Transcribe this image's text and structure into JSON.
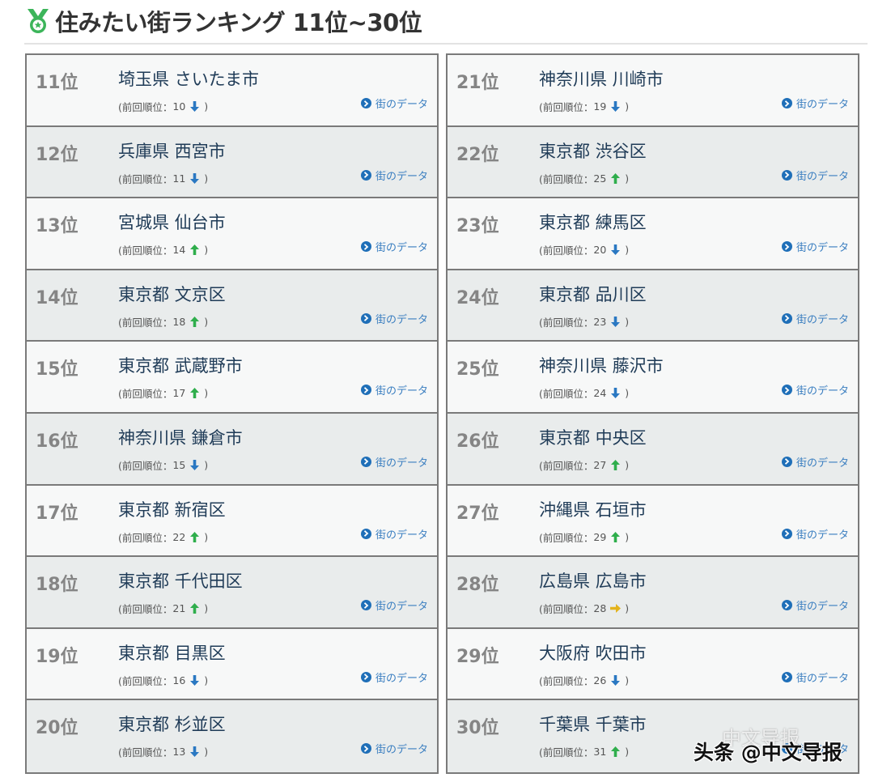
{
  "header": {
    "title": "住みたい街ランキング 11位~30位",
    "icon": "medal-icon",
    "accent_color": "#3cb55a"
  },
  "colors": {
    "up": "#2fae4c",
    "down": "#2a78c2",
    "same": "#e3b31c",
    "link": "#3a7ec0"
  },
  "link_label": "街のデータ",
  "left_column": [
    {
      "rank": "11位",
      "name": "埼玉県 さいたま市",
      "prev_label": "(前回順位：",
      "prev": "10",
      "trend": "down",
      "close": ")",
      "link": "街のデータ"
    },
    {
      "rank": "12位",
      "name": "兵庫県 西宮市",
      "prev_label": "(前回順位：",
      "prev": "11",
      "trend": "down",
      "close": ")",
      "link": "街のデータ"
    },
    {
      "rank": "13位",
      "name": "宮城県 仙台市",
      "prev_label": "(前回順位：",
      "prev": "14",
      "trend": "up",
      "close": ")",
      "link": "街のデータ"
    },
    {
      "rank": "14位",
      "name": "東京都 文京区",
      "prev_label": "(前回順位：",
      "prev": "18",
      "trend": "up",
      "close": ")",
      "link": "街のデータ"
    },
    {
      "rank": "15位",
      "name": "東京都 武蔵野市",
      "prev_label": "(前回順位：",
      "prev": "17",
      "trend": "up",
      "close": ")",
      "link": "街のデータ"
    },
    {
      "rank": "16位",
      "name": "神奈川県 鎌倉市",
      "prev_label": "(前回順位：",
      "prev": "15",
      "trend": "down",
      "close": ")",
      "link": "街のデータ"
    },
    {
      "rank": "17位",
      "name": "東京都 新宿区",
      "prev_label": "(前回順位：",
      "prev": "22",
      "trend": "up",
      "close": ")",
      "link": "街のデータ"
    },
    {
      "rank": "18位",
      "name": "東京都 千代田区",
      "prev_label": "(前回順位：",
      "prev": "21",
      "trend": "up",
      "close": ")",
      "link": "街のデータ"
    },
    {
      "rank": "19位",
      "name": "東京都 目黒区",
      "prev_label": "(前回順位：",
      "prev": "16",
      "trend": "down",
      "close": ")",
      "link": "街のデータ"
    },
    {
      "rank": "20位",
      "name": "東京都 杉並区",
      "prev_label": "(前回順位：",
      "prev": "13",
      "trend": "down",
      "close": ")",
      "link": "街のデータ"
    }
  ],
  "right_column": [
    {
      "rank": "21位",
      "name": "神奈川県 川崎市",
      "prev_label": "(前回順位：",
      "prev": "19",
      "trend": "down",
      "close": ")",
      "link": "街のデータ"
    },
    {
      "rank": "22位",
      "name": "東京都 渋谷区",
      "prev_label": "(前回順位：",
      "prev": "25",
      "trend": "up",
      "close": ")",
      "link": "街のデータ"
    },
    {
      "rank": "23位",
      "name": "東京都 練馬区",
      "prev_label": "(前回順位：",
      "prev": "20",
      "trend": "down",
      "close": ")",
      "link": "街のデータ"
    },
    {
      "rank": "24位",
      "name": "東京都 品川区",
      "prev_label": "(前回順位：",
      "prev": "23",
      "trend": "down",
      "close": ")",
      "link": "街のデータ"
    },
    {
      "rank": "25位",
      "name": "神奈川県 藤沢市",
      "prev_label": "(前回順位：",
      "prev": "24",
      "trend": "down",
      "close": ")",
      "link": "街のデータ"
    },
    {
      "rank": "26位",
      "name": "東京都 中央区",
      "prev_label": "(前回順位：",
      "prev": "27",
      "trend": "up",
      "close": ")",
      "link": "街のデータ"
    },
    {
      "rank": "27位",
      "name": "沖縄県 石垣市",
      "prev_label": "(前回順位：",
      "prev": "29",
      "trend": "up",
      "close": ")",
      "link": "街のデータ"
    },
    {
      "rank": "28位",
      "name": "広島県 広島市",
      "prev_label": "(前回順位：",
      "prev": "28",
      "trend": "same",
      "close": ")",
      "link": "街のデータ"
    },
    {
      "rank": "29位",
      "name": "大阪府 吹田市",
      "prev_label": "(前回順位：",
      "prev": "26",
      "trend": "down",
      "close": ")",
      "link": "街のデータ"
    },
    {
      "rank": "30位",
      "name": "千葉県 千葉市",
      "prev_label": "(前回順位：",
      "prev": "31",
      "trend": "up",
      "close": ")",
      "link": "街のデータ"
    }
  ],
  "watermark": {
    "text": "头条 @中文导报",
    "faint_text": "中文导报"
  }
}
